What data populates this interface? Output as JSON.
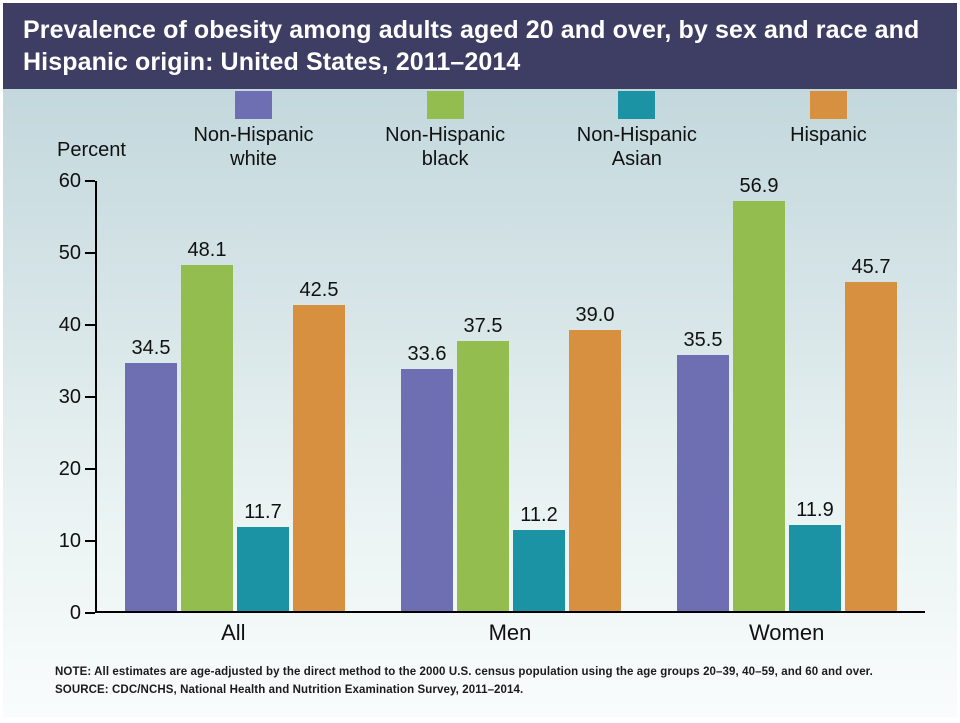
{
  "header": {
    "title": "Prevalence of obesity among adults aged 20 and over, by sex and race and Hispanic origin: United States, 2011–2014"
  },
  "footer": {
    "note": "NOTE: All estimates are age-adjusted by the direct method to the 2000 U.S. census population using the age groups 20–39, 40–59, and 60 and over.",
    "source": "SOURCE: CDC/NCHS, National Health and Nutrition Examination Survey, 2011–2014."
  },
  "colors": {
    "header_background": "#3e3d64",
    "axis": "#000000"
  },
  "chart_data": {
    "type": "bar",
    "title": "Prevalence of obesity among adults aged 20 and over, by sex and race and Hispanic origin: United States, 2011–2014",
    "categories": [
      "All",
      "Men",
      "Women"
    ],
    "series": [
      {
        "name": "Non-Hispanic white",
        "color": "#6e6eb2",
        "values": [
          34.5,
          33.6,
          35.5
        ]
      },
      {
        "name": "Non-Hispanic black",
        "color": "#94bd50",
        "values": [
          48.1,
          37.5,
          56.9
        ]
      },
      {
        "name": "Non-Hispanic Asian",
        "color": "#1b93a5",
        "values": [
          11.7,
          11.2,
          11.9
        ]
      },
      {
        "name": "Hispanic",
        "color": "#d6903f",
        "values": [
          42.5,
          39.0,
          45.7
        ]
      }
    ],
    "xlabel": "",
    "ylabel": "Percent",
    "ylim": [
      0,
      60
    ],
    "yticks": [
      0,
      10,
      20,
      30,
      40,
      50,
      60
    ],
    "grid": false,
    "legend_position": "top",
    "value_label_decimals": 1
  }
}
